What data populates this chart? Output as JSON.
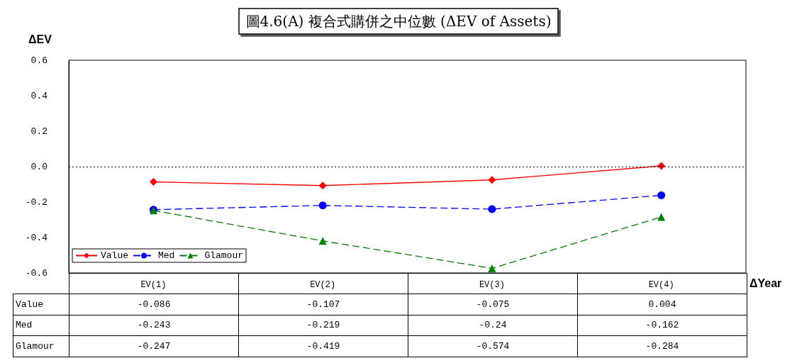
{
  "chart_data": {
    "type": "line",
    "title": "圖4.6(A) 複合式購併之中位數 (ΔEV of Assets)",
    "ylabel": "ΔEV",
    "xlabel": "ΔYear",
    "categories": [
      "EV(1)",
      "EV(2)",
      "EV(3)",
      "EV(4)"
    ],
    "series": [
      {
        "name": "Value",
        "color": "#ff0000",
        "marker": "diamond",
        "line_style": "solid",
        "values": [
          -0.086,
          -0.107,
          -0.075,
          0.004
        ]
      },
      {
        "name": "Med",
        "color": "#0000ff",
        "marker": "circle",
        "line_style": "dashed",
        "values": [
          -0.243,
          -0.219,
          -0.24,
          -0.162
        ]
      },
      {
        "name": "Glamour",
        "color": "#008000",
        "marker": "triangle",
        "line_style": "dashed",
        "values": [
          -0.247,
          -0.419,
          -0.574,
          -0.284
        ]
      }
    ],
    "ylim": [
      -0.6,
      0.6
    ],
    "yticks": [
      {
        "value": -0.6,
        "label": "-0.6"
      },
      {
        "value": -0.4,
        "label": "-0.4"
      },
      {
        "value": -0.2,
        "label": "-0.2"
      },
      {
        "value": 0,
        "label": "0.0"
      },
      0.2,
      0.4,
      0.6
    ],
    "ref_lines": [
      {
        "axis": "y",
        "value": 0,
        "label": null,
        "line_style": "dotted",
        "color": "#000000"
      }
    ],
    "legend": "bottom left",
    "grid": false,
    "data_labels": true
  }
}
